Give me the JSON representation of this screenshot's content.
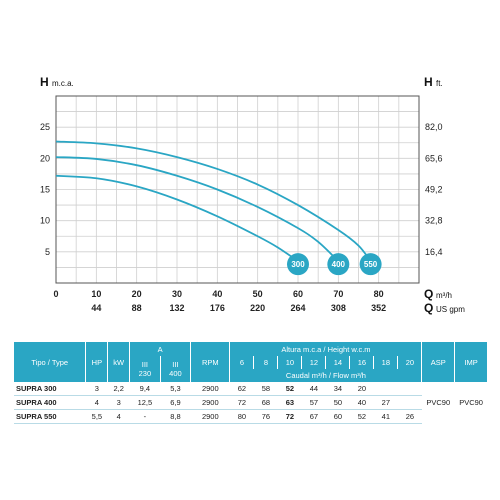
{
  "chart_data": {
    "type": "line",
    "y_axis_left": {
      "label": "H",
      "unit": "m.c.a.",
      "ticks": [
        5,
        10,
        15,
        20,
        25
      ],
      "range": [
        0,
        30
      ]
    },
    "y_axis_right": {
      "label": "H",
      "unit": "ft.",
      "ticks": [
        "16,4",
        "32,8",
        "49,2",
        "65,6",
        "82,0"
      ]
    },
    "x_axis": {
      "label": "Q",
      "unit": "m³/h",
      "ticks": [
        0,
        10,
        20,
        30,
        40,
        50,
        60,
        70,
        80
      ],
      "range": [
        0,
        90
      ]
    },
    "x_axis_secondary": {
      "label": "Q",
      "unit": "US gpm",
      "ticks": [
        "44",
        "88",
        "132",
        "176",
        "220",
        "264",
        "308",
        "352"
      ]
    },
    "grid": true,
    "series": [
      {
        "name": "300",
        "x": [
          0,
          10,
          20,
          30,
          40,
          50,
          55,
          60
        ],
        "y": [
          17.2,
          16.8,
          15.5,
          13.4,
          10.7,
          7.5,
          5.7,
          3.5
        ]
      },
      {
        "name": "400",
        "x": [
          0,
          10,
          20,
          30,
          40,
          50,
          60,
          65,
          70
        ],
        "y": [
          20.2,
          19.9,
          18.9,
          17.2,
          15.0,
          12.2,
          8.8,
          6.6,
          3.5
        ]
      },
      {
        "name": "550",
        "x": [
          0,
          10,
          20,
          30,
          40,
          50,
          60,
          70,
          75,
          78
        ],
        "y": [
          22.7,
          22.4,
          21.6,
          20.2,
          18.3,
          15.8,
          12.5,
          8.5,
          6.0,
          3.5
        ]
      }
    ]
  },
  "table": {
    "headers": {
      "tipo": "Tipo / Type",
      "hp": "HP",
      "kw": "kW",
      "a": "A",
      "a_sub1_top": "III",
      "a_sub1_bottom": "230",
      "a_sub2_top": "III",
      "a_sub2_bottom": "400",
      "rpm": "RPM",
      "altura": "Altura m.c.a / Height w.c.m",
      "caudal": "Caudal m³/h / Flow m³/h",
      "asp": "ASP",
      "imp": "IMP",
      "heights": [
        "6",
        "8",
        "10",
        "12",
        "14",
        "16",
        "18",
        "20"
      ]
    },
    "rows": [
      {
        "model": "SUPRA 300",
        "hp": "3",
        "kw": "2,2",
        "a230": "9,4",
        "a400": "5,3",
        "rpm": "2900",
        "flows": [
          "62",
          "58",
          "52",
          "44",
          "34",
          "20",
          "",
          ""
        ]
      },
      {
        "model": "SUPRA 400",
        "hp": "4",
        "kw": "3",
        "a230": "12,5",
        "a400": "6,9",
        "rpm": "2900",
        "flows": [
          "72",
          "68",
          "63",
          "57",
          "50",
          "40",
          "27",
          ""
        ]
      },
      {
        "model": "SUPRA 550",
        "hp": "5,5",
        "kw": "4",
        "a230": "-",
        "a400": "8,8",
        "rpm": "2900",
        "flows": [
          "80",
          "76",
          "72",
          "67",
          "60",
          "52",
          "41",
          "26"
        ]
      }
    ],
    "asp": "PVC90",
    "imp": "PVC90"
  },
  "colors": {
    "curve": "#2aa6c4",
    "header_bg": "#2aa6c4",
    "grid": "#cfcfcf"
  }
}
